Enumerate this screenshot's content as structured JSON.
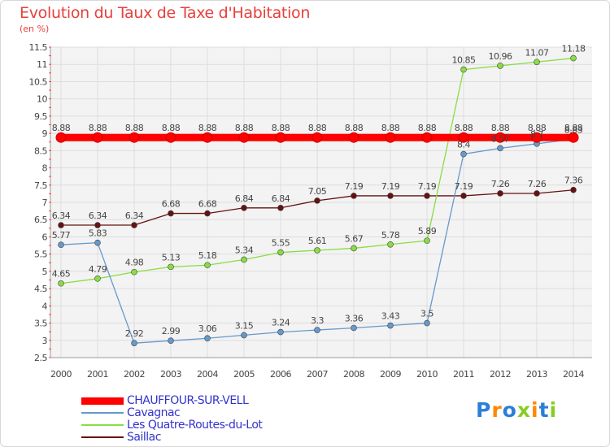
{
  "chart_data": {
    "type": "line",
    "title": "Evolution du Taux de Taxe d'Habitation",
    "ylabel": "(en %)",
    "x": [
      "2000",
      "2001",
      "2002",
      "2003",
      "2004",
      "2005",
      "2006",
      "2007",
      "2008",
      "2009",
      "2010",
      "2011",
      "2012",
      "2013",
      "2014"
    ],
    "ylim": [
      2.5,
      11.5
    ],
    "yticks": [
      "2.5",
      "3",
      "3.5",
      "4",
      "4.5",
      "5",
      "5.5",
      "6",
      "6.5",
      "7",
      "7.5",
      "8",
      "8.5",
      "9",
      "9.5",
      "10",
      "10.5",
      "11",
      "11.5"
    ],
    "grid": true,
    "legend_position": "bottom-left",
    "series": [
      {
        "name": "CHAUFFOUR-SUR-VELL",
        "color": "#ff0000",
        "values": [
          8.88,
          8.88,
          8.88,
          8.88,
          8.88,
          8.88,
          8.88,
          8.88,
          8.88,
          8.88,
          8.88,
          8.88,
          8.88,
          8.88,
          8.88
        ],
        "labels": [
          "8.88",
          "8.88",
          "8.88",
          "8.88",
          "8.88",
          "8.88",
          "8.88",
          "8.88",
          "8.88",
          "8.88",
          "8.88",
          "8.88",
          "8.88",
          "8.88",
          "8.88"
        ]
      },
      {
        "name": "Cavagnac",
        "color": "#6699cc",
        "values": [
          5.77,
          5.83,
          2.92,
          2.99,
          3.06,
          3.15,
          3.24,
          3.3,
          3.36,
          3.43,
          3.5,
          8.4,
          8.57,
          8.7,
          8.83
        ],
        "labels": [
          "5.77",
          "5.83",
          "2.92",
          "2.99",
          "3.06",
          "3.15",
          "3.24",
          "3.3",
          "3.36",
          "3.43",
          "3.5",
          "8.4",
          "8.57",
          "8.7",
          "8.83"
        ]
      },
      {
        "name": "Les Quatre-Routes-du-Lot",
        "color": "#88dd44",
        "values": [
          4.65,
          4.79,
          4.98,
          5.13,
          5.18,
          5.34,
          5.55,
          5.61,
          5.67,
          5.78,
          5.89,
          10.85,
          10.96,
          11.07,
          11.18
        ],
        "labels": [
          "4.65",
          "4.79",
          "4.98",
          "5.13",
          "5.18",
          "5.34",
          "5.55",
          "5.61",
          "5.67",
          "5.78",
          "5.89",
          "10.85",
          "10.96",
          "11.07",
          "11.18"
        ]
      },
      {
        "name": "Saillac",
        "color": "#661111",
        "values": [
          6.34,
          6.34,
          6.34,
          6.68,
          6.68,
          6.84,
          6.84,
          7.05,
          7.19,
          7.19,
          7.19,
          7.19,
          7.26,
          7.26,
          7.36
        ],
        "labels": [
          "6.34",
          "6.34",
          "6.34",
          "6.68",
          "6.68",
          "6.84",
          "6.84",
          "7.05",
          "7.19",
          "7.19",
          "7.19",
          "7.19",
          "7.26",
          "7.26",
          "7.36"
        ]
      }
    ]
  },
  "logo": {
    "text": "Proxiti"
  }
}
